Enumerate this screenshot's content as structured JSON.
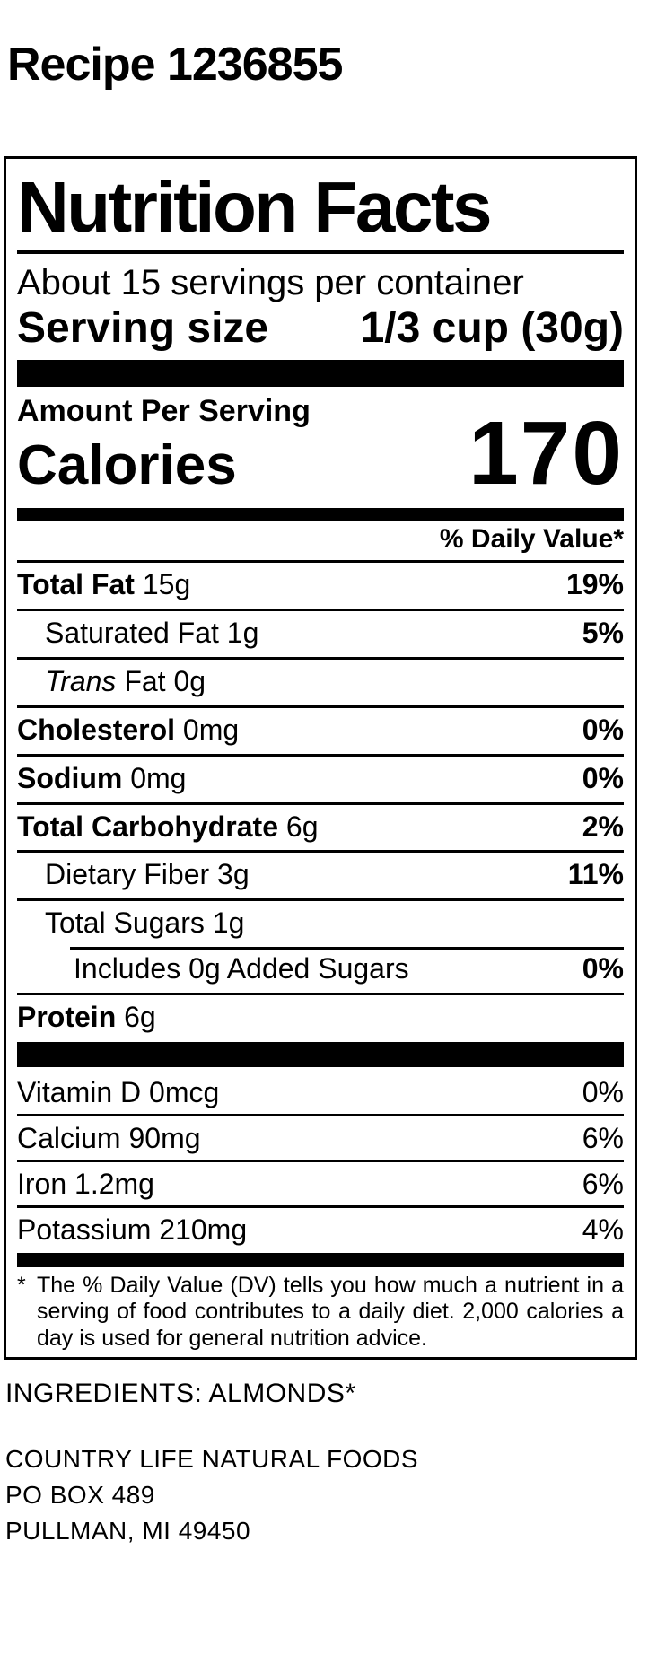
{
  "page": {
    "title": "Recipe 1236855"
  },
  "nutrition_facts": {
    "title": "Nutrition Facts",
    "servings_per_container": "About 15 servings per container",
    "serving_size": {
      "label": "Serving size",
      "value": "1/3 cup (30g)"
    },
    "amount_per_serving": "Amount Per Serving",
    "calories": {
      "label": "Calories",
      "value": "170"
    },
    "daily_value_header": "% Daily Value*",
    "rows": [
      {
        "name": "Total Fat",
        "amount": "15g",
        "dv": "19%"
      },
      {
        "name": "Saturated Fat",
        "amount": "1g",
        "dv": "5%"
      },
      {
        "name_italic": "Trans",
        "name": "Fat",
        "amount": "0g",
        "dv": ""
      },
      {
        "name": "Cholesterol",
        "amount": "0mg",
        "dv": "0%"
      },
      {
        "name": "Sodium",
        "amount": "0mg",
        "dv": "0%"
      },
      {
        "name": "Total Carbohydrate",
        "amount": "6g",
        "dv": "2%"
      },
      {
        "name": "Dietary Fiber",
        "amount": "3g",
        "dv": "11%"
      },
      {
        "name": "Total Sugars",
        "amount": "1g",
        "dv": ""
      },
      {
        "name": "Includes 0g Added Sugars",
        "amount": "",
        "dv": "0%"
      },
      {
        "name": "Protein",
        "amount": "6g",
        "dv": ""
      }
    ],
    "vitamins": [
      {
        "name": "Vitamin D",
        "amount": "0mcg",
        "dv": "0%"
      },
      {
        "name": "Calcium",
        "amount": "90mg",
        "dv": "6%"
      },
      {
        "name": "Iron",
        "amount": "1.2mg",
        "dv": "6%"
      },
      {
        "name": "Potassium",
        "amount": "210mg",
        "dv": "4%"
      }
    ],
    "footnote_star": "*",
    "footnote": "The % Daily Value (DV) tells you how much a nutrient in a serving of food contributes to a daily diet. 2,000 calories a day is used for general nutrition advice."
  },
  "footer": {
    "ingredients": "INGREDIENTS: ALMONDS*",
    "company": "COUNTRY LIFE NATURAL FOODS",
    "address_line1": "PO BOX 489",
    "address_line2": "PULLMAN, MI 49450"
  },
  "colors": {
    "ink": "#000000",
    "background": "#ffffff"
  }
}
